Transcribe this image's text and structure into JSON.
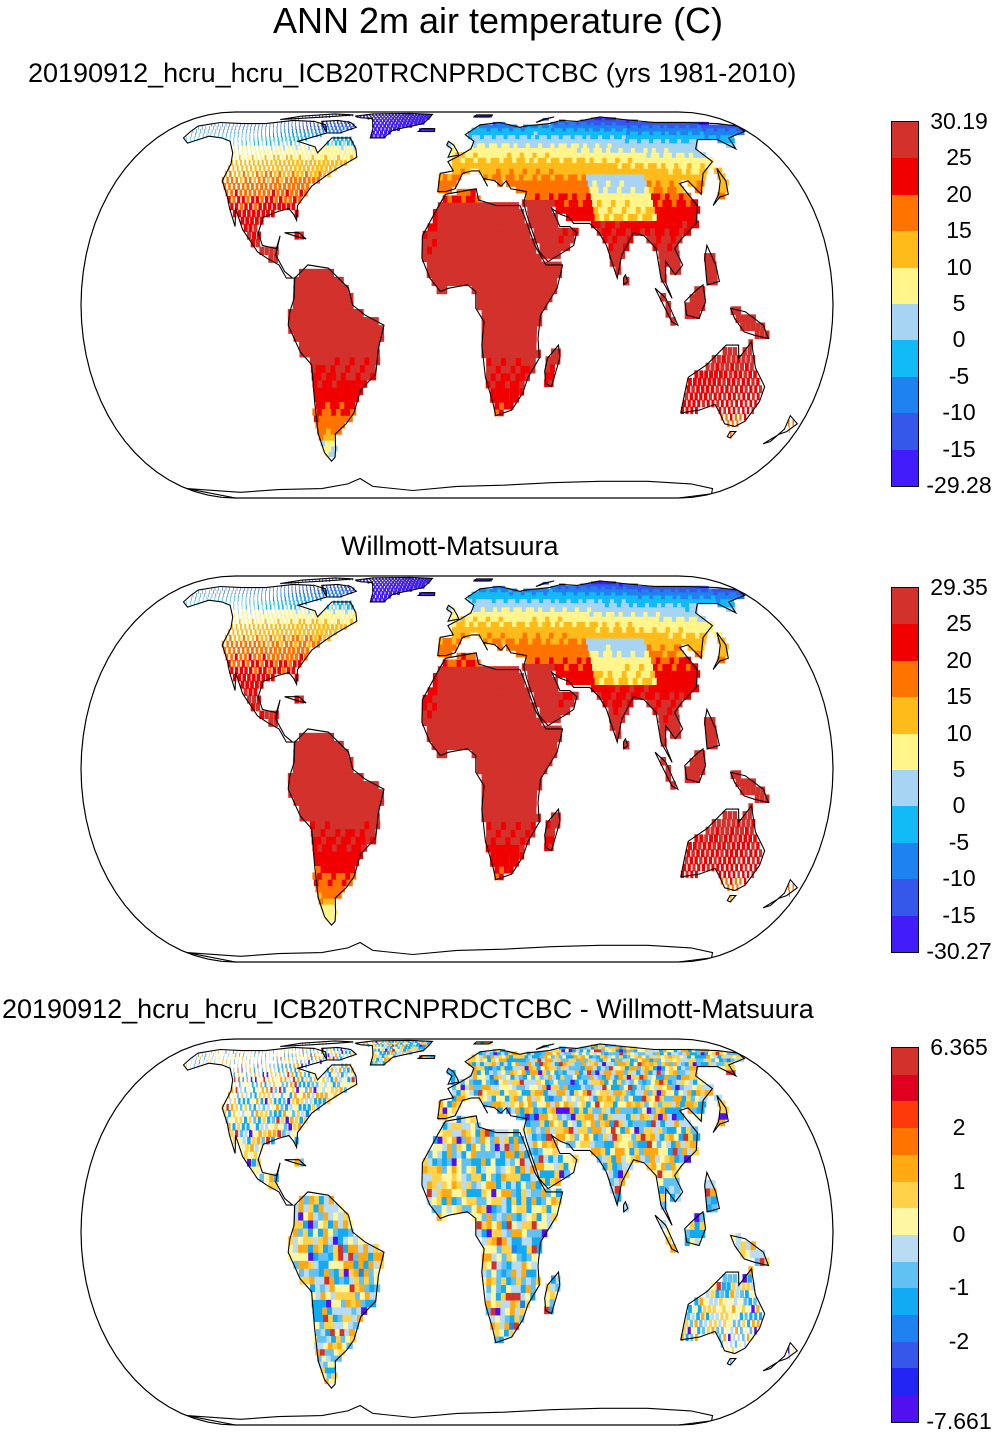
{
  "main_title": "ANN 2m air temperature (C)",
  "panels": [
    {
      "title": "20190912_hcru_hcru_ICB20TRCNPRDCTCBC (yrs 1981-2010)",
      "max": 30.19,
      "min": -29.28,
      "labels": [
        "30.19",
        "25",
        "20",
        "15",
        "10",
        "5",
        "0",
        "-5",
        "-10",
        "-15",
        "-29.28"
      ],
      "colors": [
        "#d3312b",
        "#f00000",
        "#ff7400",
        "#ffbb1a",
        "#fff58a",
        "#a7d4f2",
        "#13bbf6",
        "#1e83f1",
        "#3557ea",
        "#421cfa"
      ]
    },
    {
      "title": "Willmott-Matsuura",
      "max": 29.35,
      "min": -30.27,
      "labels": [
        "29.35",
        "25",
        "20",
        "15",
        "10",
        "5",
        "0",
        "-5",
        "-10",
        "-15",
        "-30.27"
      ],
      "colors": [
        "#d3312b",
        "#f00000",
        "#ff7400",
        "#ffbb1a",
        "#fff58a",
        "#a7d4f2",
        "#13bbf6",
        "#1e83f1",
        "#3557ea",
        "#421cfa"
      ]
    },
    {
      "title": "20190912_hcru_hcru_ICB20TRCNPRDCTCBC - Willmott-Matsuura",
      "max": 6.365,
      "min": -7.661,
      "labels": [
        "6.365",
        "2",
        "1",
        "0",
        "-1",
        "-2",
        "-7.661"
      ],
      "colors": [
        "#d3312b",
        "#e0001f",
        "#ff3a0a",
        "#ff7400",
        "#ffaa12",
        "#ffd24a",
        "#fff6a3",
        "#b9dcf2",
        "#62c1f3",
        "#11aaf3",
        "#1e83f1",
        "#3557ea",
        "#2225f3",
        "#5010f0"
      ]
    }
  ]
}
